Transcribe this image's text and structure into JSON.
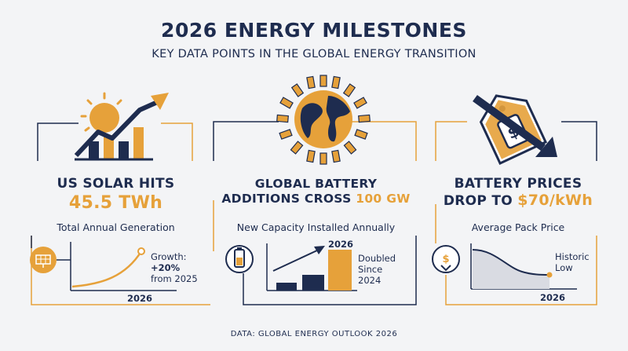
{
  "header": {
    "title": "2026 ENERGY MILESTONES",
    "subtitle": "KEY DATA POINTS IN THE GLOBAL ENERGY TRANSITION"
  },
  "panels": [
    {
      "heading_line1": "US SOLAR HITS",
      "heading_value": "45.5 TWh",
      "caption": "Total Annual Generation",
      "note_label": "Growth:",
      "note_value": "+20%",
      "note_detail": "from 2025",
      "year_label": "2026",
      "icon": "solar-panel-icon"
    },
    {
      "heading_line1": "GLOBAL BATTERY",
      "heading_line2": "ADDITIONS CROSS",
      "heading_value": "100 GW",
      "caption": "New Capacity Installed Annually",
      "bar_label": "2026",
      "note_line1": "Doubled",
      "note_line2": "Since",
      "note_line3": "2024",
      "icon": "battery-icon"
    },
    {
      "heading_line1": "BATTERY PRICES",
      "heading_line2": "DROP TO",
      "heading_value": "$70/kWh",
      "caption": "Average Pack Price",
      "note_line1": "Historic",
      "note_line2": "Low",
      "year_label": "2026",
      "icon": "price-down-icon"
    }
  ],
  "footer": {
    "source": "DATA: GLOBAL ENERGY OUTLOOK 2026"
  },
  "colors": {
    "navy": "#1e2c4f",
    "gold": "#e6a13a",
    "background": "#f3f4f6"
  }
}
